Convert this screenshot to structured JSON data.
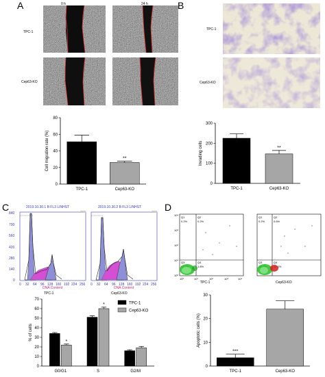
{
  "panel_labels": [
    "A",
    "B",
    "C",
    "D"
  ],
  "panelA": {
    "time_labels": [
      "0 h",
      "24 h"
    ],
    "row_labels": [
      "TPC-1",
      "Cep63-KO"
    ]
  },
  "panelB": {
    "row_labels": [
      "TPC-1",
      "Cep63-KO"
    ]
  },
  "panelC": {
    "histogram_titles": [
      "2019.10.30.1 B FL3 LINHST",
      "2019.10.30.2 B FL3 LINHST"
    ],
    "y_ticks": [
      "840",
      "700",
      "560",
      "420",
      "280",
      "140",
      "0"
    ],
    "x_ticks": [
      "0",
      "32",
      "64",
      "96",
      "128",
      "160",
      "192",
      "224",
      "256"
    ],
    "x_title": "DNA Content",
    "histogram_captions": [
      "TPC-1",
      "Cep63-KO"
    ]
  },
  "panelD": {
    "quadrant_labels": [
      "Q1",
      "Q2",
      "Q3",
      "Q4"
    ],
    "plot1_values": [
      "0.2%",
      "0.2%",
      "97.7%",
      "1.8%"
    ],
    "plot2_values": [
      "0.2%",
      "0.6%",
      "78.7%",
      "20.6%"
    ],
    "y_ticks": [
      "10⁴",
      "10³",
      "10²",
      "10¹",
      "10⁰"
    ],
    "x_ticks": [
      "10⁰",
      "10¹",
      "10²",
      "10³",
      "10⁴"
    ],
    "captions": [
      "TPC-1",
      "Cep63-KO"
    ]
  },
  "colors": {
    "black_bar": "#000000",
    "gray_bar": "#a6a6a6",
    "axis_blue": "#3b3bb5",
    "wound_edge": "#e03030",
    "crystal_violet": "#6a4fb3"
  },
  "chart_data": [
    {
      "type": "bar",
      "categories": [
        "TPC-1",
        "Cep63-KO"
      ],
      "values": [
        51,
        26
      ],
      "errors": [
        8,
        1.5
      ],
      "significance": [
        "",
        "**"
      ],
      "ylabel": "Cell migration rate (%)",
      "yticks": [
        0,
        20,
        40,
        60,
        80
      ],
      "ylim": [
        0,
        80
      ],
      "bar_colors": [
        "#000000",
        "#a6a6a6"
      ]
    },
    {
      "type": "bar",
      "categories": [
        "TPC-1",
        "Cep63-KO"
      ],
      "values": [
        225,
        147
      ],
      "errors": [
        22,
        17
      ],
      "significance": [
        "",
        "**"
      ],
      "ylabel": "Invading cells",
      "yticks": [
        0,
        100,
        200,
        300
      ],
      "ylim": [
        0,
        300
      ],
      "bar_colors": [
        "#000000",
        "#a6a6a6"
      ]
    },
    {
      "type": "bar",
      "categories": [
        "G0/G1",
        "S",
        "G2/M"
      ],
      "series": [
        {
          "name": "TPC-1",
          "values": [
            34,
            51,
            16
          ],
          "errors": [
            1,
            1.5,
            1
          ],
          "significance": [
            "",
            "",
            ""
          ]
        },
        {
          "name": "Cep63-KO",
          "values": [
            22,
            60,
            19
          ],
          "errors": [
            1,
            1.5,
            1.5
          ],
          "significance": [
            "*",
            "*",
            ""
          ]
        }
      ],
      "ylabel": "% of cells",
      "yticks": [
        0,
        10,
        20,
        30,
        40,
        50,
        60,
        70
      ],
      "ylim": [
        0,
        70
      ],
      "legend": "top-right",
      "bar_colors": [
        "#000000",
        "#a6a6a6"
      ]
    },
    {
      "type": "bar",
      "categories": [
        "TPC-1",
        "Cep63-KO"
      ],
      "values": [
        3.5,
        24
      ],
      "errors": [
        1.5,
        3.5
      ],
      "significance": [
        "***",
        ""
      ],
      "ylabel": "Apoptotic cells (%)",
      "yticks": [
        0,
        10,
        20,
        30
      ],
      "ylim": [
        0,
        30
      ],
      "bar_colors": [
        "#000000",
        "#a6a6a6"
      ]
    }
  ]
}
